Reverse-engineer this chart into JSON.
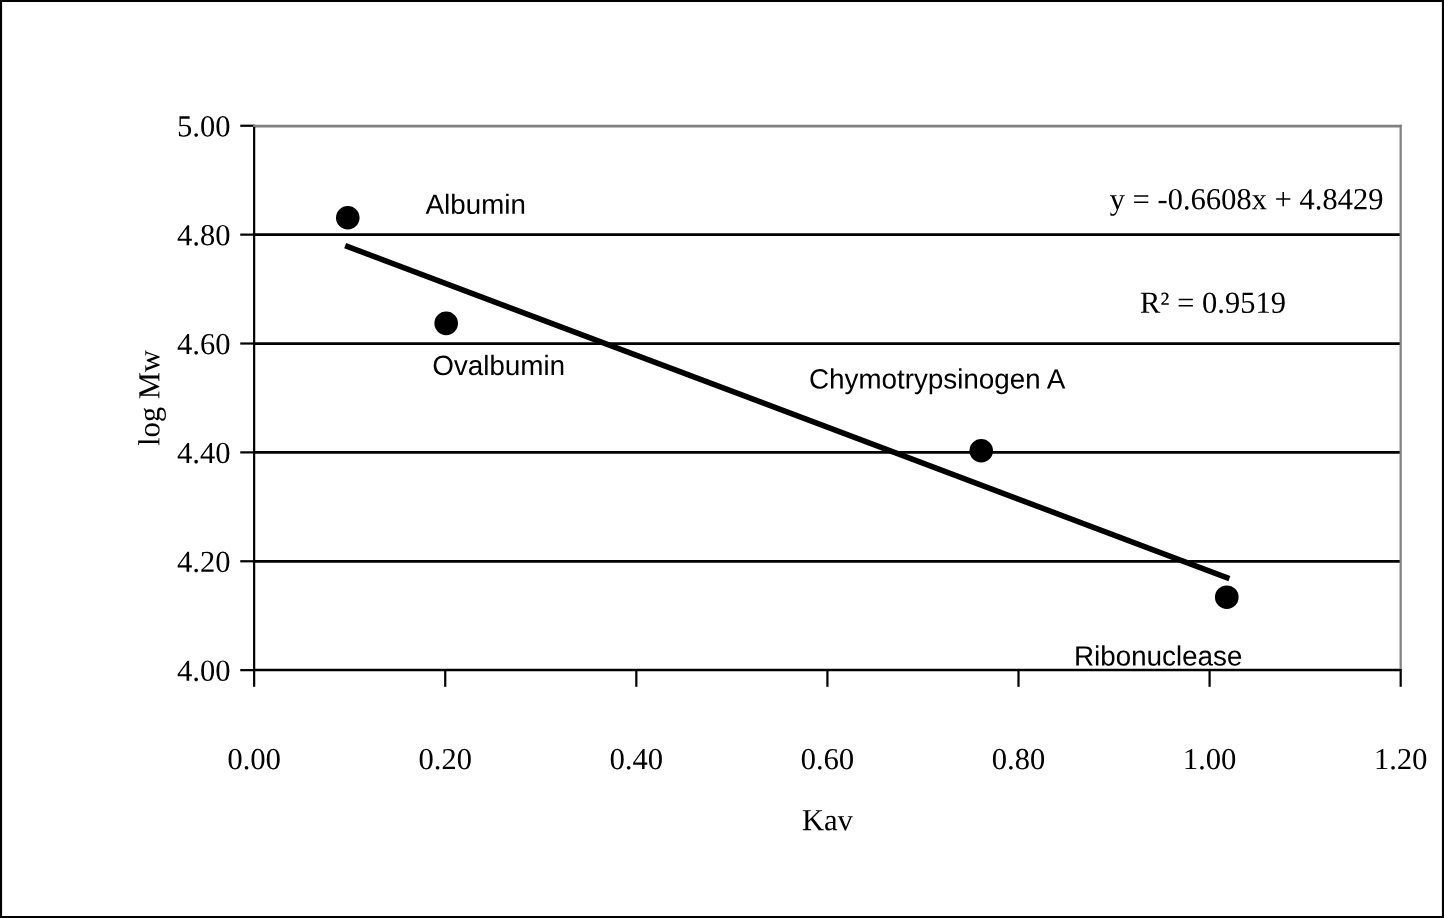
{
  "chart_data": {
    "type": "scatter",
    "xlabel": "Kav",
    "ylabel": "log Mw",
    "x": [
      0.098,
      0.201,
      0.761,
      1.018
    ],
    "marker": "circle",
    "series": [
      {
        "color": "#000000",
        "values": [
          4.831,
          4.637,
          4.403,
          4.134
        ]
      },
      {
        "type": "line",
        "marker": "none",
        "color": "#000000",
        "x": [
          0.098,
          1.018
        ],
        "values": [
          4.778,
          4.17
        ]
      }
    ],
    "xlim": [
      0,
      1.2
    ],
    "xticks": [
      {
        "value": 0,
        "label": "0.00"
      },
      {
        "value": 0.2,
        "label": "0.20"
      },
      {
        "value": 0.4,
        "label": "0.40"
      },
      {
        "value": 0.6,
        "label": "0.60"
      },
      {
        "value": 0.8,
        "label": "0.80"
      },
      {
        "value": 1.0,
        "label": "1.00"
      },
      {
        "value": 1.2,
        "label": "1.20"
      }
    ],
    "ylim": [
      4.0,
      5.0
    ],
    "yticks": [
      {
        "value": 4.0,
        "label": "4.00"
      },
      {
        "value": 4.2,
        "label": "4.20"
      },
      {
        "value": 4.4,
        "label": "4.40"
      },
      {
        "value": 4.6,
        "label": "4.60"
      },
      {
        "value": 4.8,
        "label": "4.80"
      },
      {
        "value": 5.0,
        "label": "5.00"
      }
    ],
    "grid": "y",
    "annotations": [
      {
        "text": "Albumin",
        "x": 0.098,
        "y": 4.831
      },
      {
        "text": "Ovalbumin",
        "x": 0.201,
        "y": 4.637
      },
      {
        "text": "Chymotrypsinogen A",
        "x": 0.761,
        "y": 4.403
      },
      {
        "text": "Ribonuclease",
        "x": 1.018,
        "y": 4.134
      },
      "y = -0.6608x + 4.8429",
      "R² = 0.9519"
    ]
  }
}
